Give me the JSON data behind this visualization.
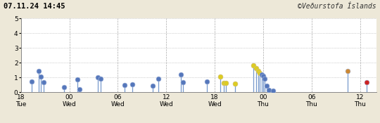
{
  "title_left": "07.11.24 14:45",
  "title_right": "©Veðurstofa Íslands",
  "xlim": [
    18,
    62
  ],
  "ylim": [
    0,
    5
  ],
  "yticks": [
    0,
    1,
    2,
    3,
    4,
    5
  ],
  "xtick_positions": [
    18,
    24,
    30,
    36,
    42,
    48,
    54,
    60
  ],
  "xtick_labels": [
    "18\nTue",
    "00\nWed",
    "06\nWed",
    "12\nWed",
    "18\nWed",
    "00\nThu",
    "06\nThu",
    "12\nThu"
  ],
  "background_color": "#ede8d8",
  "plot_bg": "#ffffff",
  "grid_color": "#aaaaaa",
  "events": [
    {
      "t": 19.3,
      "m": 0.75,
      "color": "#5577bb"
    },
    {
      "t": 20.2,
      "m": 1.42,
      "color": "#5577bb"
    },
    {
      "t": 20.5,
      "m": 1.05,
      "color": "#5577bb"
    },
    {
      "t": 20.8,
      "m": 0.7,
      "color": "#5577bb"
    },
    {
      "t": 23.3,
      "m": 0.35,
      "color": "#5577bb"
    },
    {
      "t": 25.0,
      "m": 0.85,
      "color": "#5577bb"
    },
    {
      "t": 25.3,
      "m": 0.18,
      "color": "#5577bb"
    },
    {
      "t": 27.5,
      "m": 1.02,
      "color": "#5577bb"
    },
    {
      "t": 27.9,
      "m": 0.93,
      "color": "#5577bb"
    },
    {
      "t": 30.8,
      "m": 0.5,
      "color": "#5577bb"
    },
    {
      "t": 31.8,
      "m": 0.55,
      "color": "#5577bb"
    },
    {
      "t": 34.3,
      "m": 0.45,
      "color": "#5577bb"
    },
    {
      "t": 35.0,
      "m": 0.92,
      "color": "#5577bb"
    },
    {
      "t": 37.8,
      "m": 1.22,
      "color": "#5577bb"
    },
    {
      "t": 38.1,
      "m": 0.7,
      "color": "#5577bb"
    },
    {
      "t": 41.0,
      "m": 0.75,
      "color": "#5577bb"
    },
    {
      "t": 42.7,
      "m": 1.05,
      "color": "#ddcc22"
    },
    {
      "t": 43.1,
      "m": 0.65,
      "color": "#ddcc22"
    },
    {
      "t": 43.4,
      "m": 0.62,
      "color": "#ddcc22"
    },
    {
      "t": 44.5,
      "m": 0.6,
      "color": "#ddcc22"
    },
    {
      "t": 46.8,
      "m": 1.8,
      "color": "#ddcc22"
    },
    {
      "t": 47.1,
      "m": 1.62,
      "color": "#ddcc22"
    },
    {
      "t": 47.4,
      "m": 1.45,
      "color": "#ddcc22"
    },
    {
      "t": 47.6,
      "m": 1.3,
      "color": "#ddcc22"
    },
    {
      "t": 47.8,
      "m": 1.22,
      "color": "#5577bb"
    },
    {
      "t": 48.0,
      "m": 1.1,
      "color": "#5577bb"
    },
    {
      "t": 48.2,
      "m": 0.9,
      "color": "#5577bb"
    },
    {
      "t": 48.4,
      "m": 0.45,
      "color": "#5577bb"
    },
    {
      "t": 48.7,
      "m": 0.15,
      "color": "#5577bb"
    },
    {
      "t": 49.2,
      "m": 0.1,
      "color": "#5577bb"
    },
    {
      "t": 58.5,
      "m": 1.42,
      "color": "#cc8833"
    },
    {
      "t": 60.8,
      "m": 0.7,
      "color": "#cc2222"
    }
  ],
  "marker_size": 5,
  "line_color": "#7799cc"
}
